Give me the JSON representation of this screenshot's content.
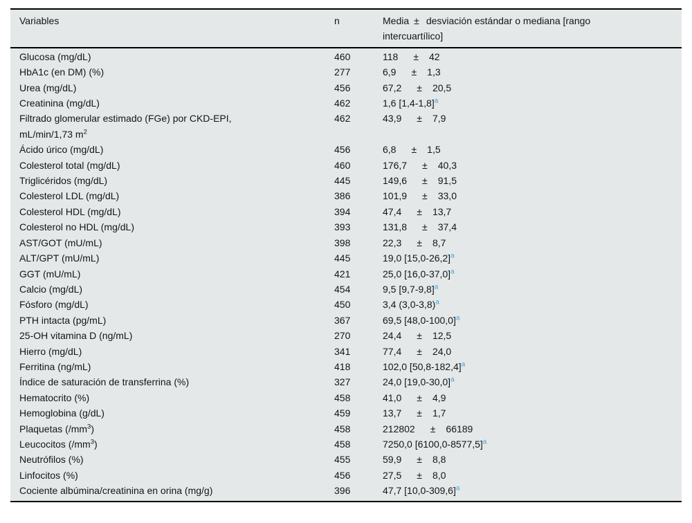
{
  "colors": {
    "table_background": "#e5e8e9",
    "border_black": "#000000",
    "footnote_marker_blue": "#3fa5d6"
  },
  "table": {
    "header": {
      "variables": "Variables",
      "n": "n",
      "media_pre": "Media",
      "pm": "±",
      "media_post": "desviación estándar o mediana [rango\nintercuartílico]"
    },
    "footnote_marker": "a",
    "rows": [
      {
        "name": "Glucosa (mg/dL)",
        "n": "460",
        "mean": "118",
        "sd": "42"
      },
      {
        "name": "HbA1c (en DM) (%)",
        "n": "277",
        "mean": "6,9",
        "sd": "1,3"
      },
      {
        "name": "Urea (mg/dL)",
        "n": "456",
        "mean": "67,2",
        "sd": "20,5"
      },
      {
        "name": "Creatinina (mg/dL)",
        "n": "462",
        "median": "1,6 [1,4-1,8]",
        "sup": "a"
      },
      {
        "name": "Filtrado glomerular estimado (FGe) por CKD-EPI,\nmL/min/1,73 m^2",
        "n": "462",
        "mean": "43,9",
        "sd": "7,9"
      },
      {
        "name": "Ácido úrico (mg/dL)",
        "n": "456",
        "mean": "6,8",
        "sd": "1,5"
      },
      {
        "name": "Colesterol total (mg/dL)",
        "n": "460",
        "mean": "176,7",
        "sd": "40,3"
      },
      {
        "name": "Triglicéridos (mg/dL)",
        "n": "445",
        "mean": "149,6",
        "sd": "91,5"
      },
      {
        "name": "Colesterol LDL (mg/dL)",
        "n": "386",
        "mean": "101,9",
        "sd": "33,0"
      },
      {
        "name": "Colesterol HDL (mg/dL)",
        "n": "394",
        "mean": "47,4",
        "sd": "13,7"
      },
      {
        "name": "Colesterol no HDL (mg/dL)",
        "n": "393",
        "mean": "131,8",
        "sd": "37,4"
      },
      {
        "name": "AST/GOT (mU/mL)",
        "n": "398",
        "mean": "22,3",
        "sd": "8,7"
      },
      {
        "name": "ALT/GPT (mU/mL)",
        "n": "445",
        "median": "19,0 [15,0-26,2]",
        "sup": "a"
      },
      {
        "name": "GGT (mU/mL)",
        "n": "421",
        "median": "25,0 [16,0-37,0]",
        "sup": "a"
      },
      {
        "name": "Calcio (mg/dL)",
        "n": "454",
        "median": "9,5 [9,7-9,8]",
        "sup": "a"
      },
      {
        "name": "Fósforo (mg/dL)",
        "n": "450",
        "median": "3,4 (3,0-3,8)",
        "sup": "a"
      },
      {
        "name": "PTH intacta (pg/mL)",
        "n": "367",
        "median": "69,5 [48,0-100,0]",
        "sup": "a"
      },
      {
        "name": "25-OH vitamina D (ng/mL)",
        "n": "270",
        "mean": "24,4",
        "sd": "12,5"
      },
      {
        "name": "Hierro (mg/dL)",
        "n": "341",
        "mean": "77,4",
        "sd": "24,0"
      },
      {
        "name": "Ferritina (ng/mL)",
        "n": "418",
        "median": "102,0 [50,8-182,4]",
        "sup": "a"
      },
      {
        "name": "Índice de saturación de transferrina (%)",
        "n": "327",
        "median": "24,0 [19,0-30,0]",
        "sup": "a"
      },
      {
        "name": "Hematocrito (%)",
        "n": "458",
        "mean": "41,0",
        "sd": "4,9"
      },
      {
        "name": "Hemoglobina (g/dL)",
        "n": "459",
        "mean": "13,7",
        "sd": "1,7"
      },
      {
        "name": "Plaquetas (/mm^3)",
        "n": "458",
        "mean": "212802",
        "sd": "66189"
      },
      {
        "name": "Leucocitos (/mm^3)",
        "n": "458",
        "median": "7250,0 [6100,0-8577,5]",
        "sup": "a"
      },
      {
        "name": "Neutrófilos (%)",
        "n": "455",
        "mean": "59,9",
        "sd": "8,8"
      },
      {
        "name": "Linfocitos (%)",
        "n": "456",
        "mean": "27,5",
        "sd": "8,0"
      },
      {
        "name": "Cociente albúmina/creatinina en orina (mg/g)",
        "n": "396",
        "median": "47,7 [10,0-309,6]",
        "sup": "a"
      }
    ]
  }
}
